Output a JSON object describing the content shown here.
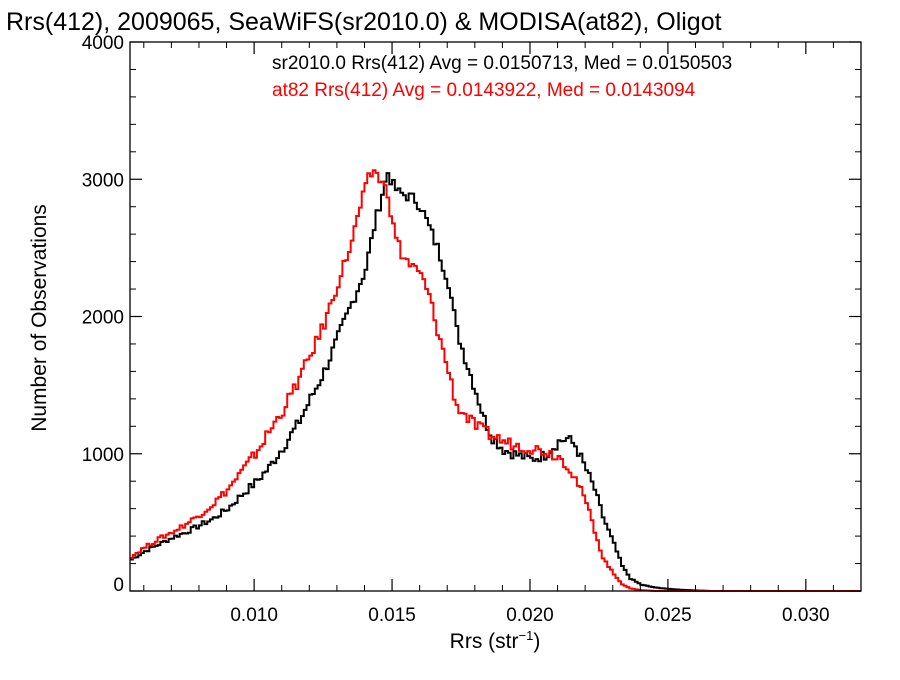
{
  "chart_data": {
    "type": "line",
    "title": "Rrs(412), 2009065, SeaWiFS(sr2010.0) & MODISA(at82), Oligot",
    "xlabel": "Rrs (str",
    "xlabel_sup": "−1",
    "xlabel_close": ")",
    "ylabel": "Number of Observations",
    "xlim": [
      0.0055,
      0.032
    ],
    "ylim": [
      0,
      4000
    ],
    "x_ticks": [
      0.01,
      0.015,
      0.02,
      0.025,
      0.03
    ],
    "x_tick_labels": [
      "0.010",
      "0.015",
      "0.020",
      "0.025",
      "0.030"
    ],
    "y_ticks": [
      0,
      1000,
      2000,
      3000,
      4000
    ],
    "y_tick_labels": [
      "0",
      "1000",
      "2000",
      "3000",
      "4000"
    ],
    "grid": false,
    "annotations": [
      {
        "text": "sr2010.0 Rrs(412) Avg = 0.0150713, Med = 0.0150503",
        "color": "#000000"
      },
      {
        "text": "at82 Rrs(412) Avg = 0.0143922, Med = 0.0143094",
        "color": "#ff0000"
      }
    ],
    "series": [
      {
        "color": "#000000",
        "points": [
          [
            0.0055,
            230
          ],
          [
            0.006,
            290
          ],
          [
            0.0065,
            340
          ],
          [
            0.007,
            390
          ],
          [
            0.0075,
            430
          ],
          [
            0.008,
            480
          ],
          [
            0.0085,
            530
          ],
          [
            0.009,
            600
          ],
          [
            0.0095,
            700
          ],
          [
            0.01,
            790
          ],
          [
            0.0105,
            900
          ],
          [
            0.011,
            1050
          ],
          [
            0.0115,
            1200
          ],
          [
            0.012,
            1400
          ],
          [
            0.0125,
            1600
          ],
          [
            0.013,
            1850
          ],
          [
            0.0135,
            2100
          ],
          [
            0.014,
            2350
          ],
          [
            0.0143,
            2650
          ],
          [
            0.0146,
            2900
          ],
          [
            0.0148,
            3050
          ],
          [
            0.015,
            2950
          ],
          [
            0.0152,
            2900
          ],
          [
            0.0155,
            2880
          ],
          [
            0.0158,
            2850
          ],
          [
            0.016,
            2800
          ],
          [
            0.0163,
            2650
          ],
          [
            0.0166,
            2500
          ],
          [
            0.017,
            2250
          ],
          [
            0.0173,
            1900
          ],
          [
            0.0176,
            1700
          ],
          [
            0.018,
            1450
          ],
          [
            0.0183,
            1250
          ],
          [
            0.0186,
            1120
          ],
          [
            0.019,
            1030
          ],
          [
            0.0195,
            990
          ],
          [
            0.02,
            960
          ],
          [
            0.0205,
            990
          ],
          [
            0.021,
            1090
          ],
          [
            0.0213,
            1110
          ],
          [
            0.0216,
            1060
          ],
          [
            0.022,
            880
          ],
          [
            0.0223,
            740
          ],
          [
            0.0226,
            540
          ],
          [
            0.023,
            340
          ],
          [
            0.0233,
            180
          ],
          [
            0.0236,
            90
          ],
          [
            0.024,
            45
          ],
          [
            0.0245,
            25
          ],
          [
            0.025,
            15
          ],
          [
            0.0255,
            8
          ],
          [
            0.026,
            4
          ],
          [
            0.0265,
            0
          ],
          [
            0.032,
            0
          ]
        ]
      },
      {
        "color": "#ff0000",
        "points": [
          [
            0.0055,
            250
          ],
          [
            0.006,
            320
          ],
          [
            0.0065,
            380
          ],
          [
            0.007,
            430
          ],
          [
            0.0075,
            490
          ],
          [
            0.008,
            560
          ],
          [
            0.0085,
            640
          ],
          [
            0.009,
            740
          ],
          [
            0.0095,
            870
          ],
          [
            0.01,
            1000
          ],
          [
            0.0105,
            1160
          ],
          [
            0.011,
            1320
          ],
          [
            0.0115,
            1510
          ],
          [
            0.012,
            1720
          ],
          [
            0.0125,
            1950
          ],
          [
            0.013,
            2250
          ],
          [
            0.0135,
            2550
          ],
          [
            0.0138,
            2800
          ],
          [
            0.0141,
            3000
          ],
          [
            0.0143,
            3070
          ],
          [
            0.0145,
            3000
          ],
          [
            0.0148,
            2900
          ],
          [
            0.015,
            2650
          ],
          [
            0.0153,
            2450
          ],
          [
            0.0156,
            2380
          ],
          [
            0.016,
            2300
          ],
          [
            0.0163,
            2150
          ],
          [
            0.0166,
            1900
          ],
          [
            0.017,
            1600
          ],
          [
            0.0173,
            1350
          ],
          [
            0.0176,
            1280
          ],
          [
            0.018,
            1200
          ],
          [
            0.0185,
            1140
          ],
          [
            0.019,
            1090
          ],
          [
            0.0195,
            1060
          ],
          [
            0.02,
            1040
          ],
          [
            0.0205,
            1020
          ],
          [
            0.021,
            980
          ],
          [
            0.0213,
            920
          ],
          [
            0.0216,
            820
          ],
          [
            0.022,
            640
          ],
          [
            0.0223,
            440
          ],
          [
            0.0226,
            240
          ],
          [
            0.023,
            120
          ],
          [
            0.0233,
            50
          ],
          [
            0.0236,
            18
          ],
          [
            0.024,
            6
          ],
          [
            0.0245,
            0
          ],
          [
            0.032,
            0
          ]
        ]
      }
    ]
  }
}
